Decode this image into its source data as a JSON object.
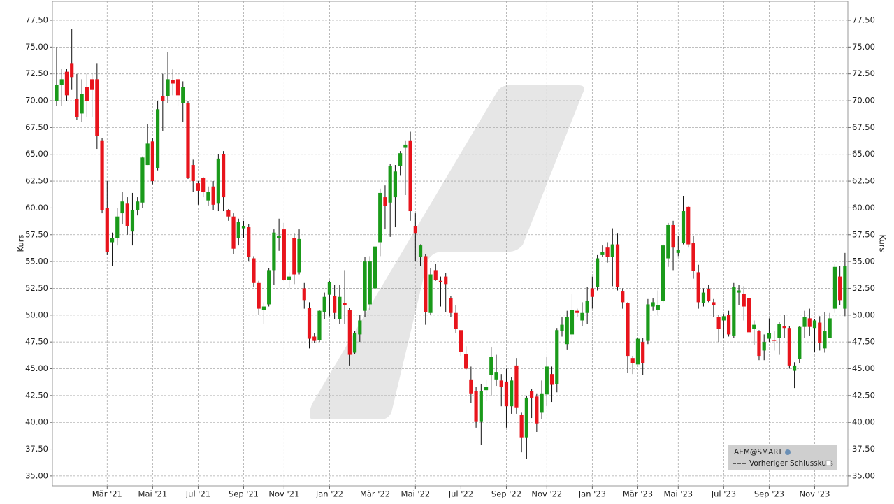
{
  "chart_data": {
    "type": "candlestick",
    "ylabel": "Kurs",
    "up_color": "#1a9a1a",
    "down_color": "#e8141c",
    "grid": true,
    "ylim": [
      34.08,
      79.26
    ],
    "yticks": [
      {
        "value": 35,
        "label": "35.00"
      },
      {
        "value": 37.5,
        "label": "37.50"
      },
      {
        "value": 40,
        "label": "40.00"
      },
      {
        "value": 42.5,
        "label": "42.50"
      },
      {
        "value": 45,
        "label": "45.00"
      },
      {
        "value": 47.5,
        "label": "47.50"
      },
      {
        "value": 50,
        "label": "50.00"
      },
      {
        "value": 52.5,
        "label": "52.50"
      },
      {
        "value": 55,
        "label": "55.00"
      },
      {
        "value": 57.5,
        "label": "57.50"
      },
      {
        "value": 60,
        "label": "60.00"
      },
      {
        "value": 62.5,
        "label": "62.50"
      },
      {
        "value": 65,
        "label": "65.00"
      },
      {
        "value": 67.5,
        "label": "67.50"
      },
      {
        "value": 70,
        "label": "70.00"
      },
      {
        "value": 72.5,
        "label": "72.50"
      },
      {
        "value": 75,
        "label": "75.00"
      },
      {
        "value": 77.5,
        "label": "77.50"
      }
    ],
    "legend_items": [
      "AEM@SMART",
      "Vorheriger Schlusskurs"
    ],
    "categories": [
      null,
      null,
      null,
      null,
      null,
      null,
      null,
      null,
      null,
      null,
      "Mär '21",
      null,
      null,
      null,
      null,
      null,
      null,
      null,
      null,
      "Mai '21",
      null,
      null,
      null,
      null,
      null,
      null,
      null,
      null,
      "Jul '21",
      null,
      null,
      null,
      null,
      null,
      null,
      null,
      null,
      "Sep '21",
      null,
      null,
      null,
      null,
      null,
      null,
      null,
      "Nov '21",
      null,
      null,
      null,
      null,
      null,
      null,
      null,
      null,
      "Jan '22",
      null,
      null,
      null,
      null,
      null,
      null,
      null,
      null,
      "Mär '22",
      null,
      null,
      null,
      null,
      null,
      null,
      null,
      "Mai '22",
      null,
      null,
      null,
      null,
      null,
      null,
      null,
      null,
      "Jul '22",
      null,
      null,
      null,
      null,
      null,
      null,
      null,
      null,
      "Sep '22",
      null,
      null,
      null,
      null,
      null,
      null,
      null,
      "Nov '22",
      null,
      null,
      null,
      null,
      null,
      null,
      null,
      null,
      "Jan '23",
      null,
      null,
      null,
      null,
      null,
      null,
      null,
      null,
      "Mär '23",
      null,
      null,
      null,
      null,
      null,
      null,
      null,
      "Mai '23",
      null,
      null,
      null,
      null,
      null,
      null,
      null,
      null,
      "Jul '23",
      null,
      null,
      null,
      null,
      null,
      null,
      null,
      null,
      "Sep '23",
      null,
      null,
      null,
      null,
      null,
      null,
      null,
      null,
      "Nov '23",
      null,
      null,
      null,
      null,
      null,
      null
    ],
    "open": [
      70,
      71.5,
      72.7,
      73.5,
      70.2,
      68.8,
      71.3,
      72,
      72,
      66.3,
      60,
      56.8,
      57.2,
      59.5,
      60.4,
      57.8,
      59.8,
      60.5,
      64,
      66.2,
      63.7,
      70.4,
      70.4,
      71.9,
      72,
      69.8,
      69.8,
      64,
      62.3,
      62.8,
      60.7,
      62,
      60.4,
      65,
      59.8,
      59.2,
      57.2,
      58.1,
      58.2,
      55.3,
      53,
      50.5,
      51,
      54.2,
      57.2,
      58,
      53.3,
      57.2,
      54,
      52.5,
      50.7,
      48,
      47.7,
      50.3,
      51.9,
      51.8,
      49.6,
      51.1,
      50.5,
      46.5,
      48.2,
      50.4,
      51,
      52.5,
      56.8,
      61,
      60.5,
      61,
      63.9,
      65.6,
      66.3,
      58.3,
      55.4,
      55.5,
      50.2,
      54.2,
      53.2,
      53.6,
      51.6,
      50.2,
      48.6,
      46.4,
      44,
      42.9,
      40.1,
      43,
      44.4,
      44,
      43.9,
      43.8,
      41.5,
      45.3,
      40.7,
      38.6,
      42.9,
      42.4,
      40.9,
      42.6,
      44.5,
      43.6,
      48.5,
      47.3,
      48.2,
      50.4,
      49.5,
      50.2,
      52.5,
      52.6,
      55.6,
      56.3,
      55.4,
      56.6,
      52.2,
      51.1,
      46,
      45.4,
      47.5,
      47.6,
      50.8,
      50.5,
      51.3,
      55.3,
      58.4,
      55.8,
      56.7,
      60.1,
      56.7,
      54,
      51.1,
      52.4,
      51.2,
      49.8,
      49.5,
      50,
      48.1,
      52.1,
      52,
      51.6,
      48.7,
      48.5,
      46.7,
      47.8,
      47.7,
      47.9,
      49,
      48.8,
      44.8,
      45.9,
      48.9,
      49.7,
      48.8,
      49.3,
      46.9,
      47.9,
      50.6,
      53.6,
      50.6
    ],
    "high": [
      75,
      73,
      73,
      76.7,
      72.5,
      72,
      72.5,
      72.5,
      73.5,
      66.5,
      62.5,
      57.7,
      60,
      61.5,
      61,
      61.4,
      61,
      64.8,
      67.8,
      66.5,
      70,
      72.5,
      74.5,
      73,
      72.6,
      71.8,
      70,
      64.5,
      62.5,
      62.9,
      62,
      62.5,
      65,
      65.3,
      59.9,
      59.5,
      59,
      58.8,
      58.5,
      55.5,
      53.2,
      51.2,
      54.4,
      58,
      59,
      58.6,
      54,
      57.6,
      58,
      53,
      51.2,
      48.3,
      50.5,
      52.1,
      53.2,
      52.8,
      52.8,
      54.2,
      50.7,
      48.5,
      50,
      55.4,
      55.5,
      56.8,
      61.8,
      62.1,
      64.1,
      64,
      65.3,
      66.3,
      67.1,
      59.5,
      56.6,
      55.7,
      54.4,
      54.8,
      53.6,
      53.9,
      51.8,
      50.9,
      48.6,
      47.1,
      45.2,
      43.3,
      43.6,
      44,
      47,
      46.3,
      44.5,
      45,
      44.2,
      46,
      40.9,
      42.5,
      43.1,
      42.7,
      43.9,
      46.1,
      45.2,
      48.8,
      49.8,
      50.4,
      52,
      50.6,
      51.2,
      52.6,
      53.6,
      55.6,
      56.5,
      56.8,
      58.1,
      57.6,
      52.5,
      51.2,
      46.2,
      47.9,
      47.9,
      51.5,
      51.6,
      52.3,
      56.6,
      58.6,
      58.8,
      57.4,
      61.1,
      60.2,
      57.4,
      54.7,
      52.5,
      52.8,
      51.5,
      50,
      50.1,
      50.4,
      53,
      52.8,
      52.7,
      52.5,
      49.5,
      48.6,
      48.2,
      49.7,
      48.5,
      49.4,
      50,
      49,
      45.6,
      49,
      50.4,
      50.6,
      49.6,
      49.9,
      50.3,
      50.2,
      54.8,
      54.6,
      55.8
    ],
    "low": [
      69.5,
      69.5,
      70,
      71,
      68.2,
      68,
      68.5,
      68.5,
      65.5,
      59.5,
      55.6,
      54.6,
      56.5,
      58.5,
      57.5,
      56.5,
      59.3,
      60,
      64,
      62.2,
      63.5,
      67.2,
      69.8,
      70.5,
      69.5,
      68,
      62.7,
      61.5,
      60.3,
      61,
      60.2,
      59.8,
      59.7,
      59.7,
      58.8,
      55.7,
      56.5,
      57.2,
      55,
      52.6,
      50,
      49.2,
      50.8,
      52.8,
      56,
      53.2,
      52.5,
      52.9,
      53.8,
      50.6,
      46.9,
      47.4,
      47.5,
      49.6,
      49.9,
      49.6,
      49.2,
      49.2,
      45.3,
      46.4,
      47.5,
      49.8,
      50.5,
      50,
      55.5,
      58,
      57.3,
      58.2,
      63,
      61.2,
      58.8,
      55,
      54.6,
      49.1,
      50,
      53.2,
      50.8,
      50.3,
      49.8,
      48.3,
      46.2,
      44.9,
      41.8,
      39.5,
      37.9,
      42,
      42.5,
      43.4,
      41.5,
      39.5,
      40.8,
      40.8,
      37.2,
      36.6,
      40.4,
      39.1,
      40.3,
      41.5,
      41.9,
      42.8,
      48,
      46.8,
      47.8,
      49.8,
      49,
      49.2,
      50.6,
      52.3,
      55.4,
      54.9,
      52.7,
      52.3,
      50.6,
      44.6,
      44.5,
      45.4,
      44.4,
      47.3,
      50.4,
      50,
      51.2,
      54.5,
      54.2,
      55.5,
      56.6,
      56.3,
      53.4,
      50.6,
      50.8,
      51.2,
      49.8,
      47.5,
      47.9,
      48,
      47.9,
      50.9,
      49.5,
      47.8,
      47.2,
      45.8,
      45.8,
      47.5,
      46.7,
      46.3,
      47.9,
      45,
      43.2,
      45.5,
      47.9,
      48.1,
      46.6,
      46.7,
      46.5,
      47.9,
      50.2,
      50.9,
      49.9
    ],
    "close": [
      71.5,
      72,
      70.5,
      72.2,
      68.5,
      70.6,
      70,
      71,
      66.7,
      59.8,
      55.9,
      57.2,
      59.2,
      60.6,
      58.3,
      59.8,
      60.6,
      64.7,
      66,
      62.5,
      69.2,
      70,
      72,
      71.6,
      70.5,
      71.3,
      62.8,
      62.5,
      61.6,
      61.5,
      61.5,
      60.3,
      64.6,
      61,
      59.2,
      56.2,
      58.7,
      58.3,
      55.4,
      53,
      50.6,
      50.8,
      54.2,
      57.7,
      57.4,
      53.3,
      53.6,
      53.8,
      57.1,
      51.4,
      47.8,
      47.6,
      50.4,
      51.7,
      53.1,
      50.2,
      51.7,
      50.9,
      46.3,
      48.3,
      49.5,
      55,
      55,
      56.4,
      61.4,
      60.2,
      63.9,
      63.4,
      65.1,
      65.9,
      59.7,
      57.6,
      56.5,
      50.3,
      53.8,
      53.3,
      53.1,
      52.9,
      50.2,
      48.7,
      46.6,
      45,
      42.7,
      40.1,
      42.9,
      43.3,
      46.1,
      44.7,
      43.3,
      41.5,
      43.9,
      41.4,
      38.6,
      42.3,
      42.3,
      39.9,
      42.7,
      45.2,
      43.5,
      48.6,
      49.1,
      49.8,
      50.5,
      50.2,
      50.2,
      51.3,
      51.7,
      55.3,
      55.9,
      55.4,
      56.6,
      52.6,
      51.2,
      46.2,
      45.5,
      47.8,
      45.5,
      51,
      51.2,
      50.9,
      56.5,
      58.4,
      56.3,
      56.1,
      59.7,
      56.6,
      54.1,
      51.2,
      52.1,
      51.3,
      50.9,
      48.7,
      49.9,
      48.2,
      52.6,
      52.3,
      50.8,
      48.4,
      49.1,
      46.2,
      47.5,
      48.3,
      47.6,
      49.2,
      48.8,
      45.3,
      45.3,
      48.9,
      49.8,
      48.9,
      49.5,
      47.4,
      48.5,
      49.7,
      54.5,
      51.4,
      54.6
    ]
  }
}
